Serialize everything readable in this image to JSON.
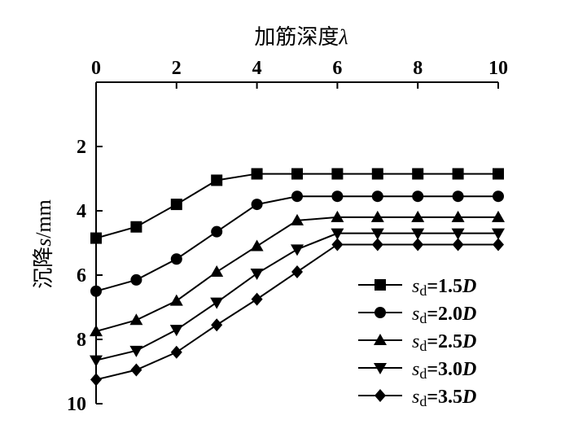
{
  "chart_data": {
    "type": "line",
    "title": "",
    "xlabel": "加筋深度λ",
    "ylabel": "沉降s/mm",
    "xlim": [
      0,
      10
    ],
    "ylim": [
      0,
      10
    ],
    "x_axis_position": "top",
    "y_inverted": true,
    "x_ticks": [
      "0",
      "2",
      "4",
      "6",
      "8",
      "10"
    ],
    "y_ticks": [
      "2",
      "4",
      "6",
      "8",
      "10"
    ],
    "legend_position": "bottom-right",
    "x": [
      0,
      1,
      2,
      3,
      4,
      5,
      6,
      7,
      8,
      9,
      10
    ],
    "series": [
      {
        "name": "sd=1.5D",
        "marker": "square",
        "values": [
          4.85,
          4.5,
          3.8,
          3.05,
          2.85,
          2.85,
          2.85,
          2.85,
          2.85,
          2.85,
          2.85
        ]
      },
      {
        "name": "sd=2.0D",
        "marker": "circle",
        "values": [
          6.5,
          6.15,
          5.5,
          4.65,
          3.8,
          3.55,
          3.55,
          3.55,
          3.55,
          3.55,
          3.55
        ]
      },
      {
        "name": "sd=2.5D",
        "marker": "triangle-up",
        "values": [
          7.75,
          7.4,
          6.8,
          5.9,
          5.1,
          4.3,
          4.2,
          4.2,
          4.2,
          4.2,
          4.2
        ]
      },
      {
        "name": "sd=3.0D",
        "marker": "triangle-down",
        "values": [
          8.65,
          8.35,
          7.7,
          6.85,
          5.95,
          5.2,
          4.7,
          4.7,
          4.7,
          4.7,
          4.7
        ]
      },
      {
        "name": "sd=3.5D",
        "marker": "diamond",
        "values": [
          9.25,
          8.95,
          8.4,
          7.55,
          6.75,
          5.9,
          5.05,
          5.05,
          5.05,
          5.05,
          5.05
        ]
      }
    ]
  },
  "legend": [
    {
      "s": "s",
      "sub": "d",
      "eq": "=1.5",
      "d": "D"
    },
    {
      "s": "s",
      "sub": "d",
      "eq": "=2.0",
      "d": "D"
    },
    {
      "s": "s",
      "sub": "d",
      "eq": "=2.5",
      "d": "D"
    },
    {
      "s": "s",
      "sub": "d",
      "eq": "=3.0",
      "d": "D"
    },
    {
      "s": "s",
      "sub": "d",
      "eq": "=3.5",
      "d": "D"
    }
  ],
  "ylabel_parts": {
    "main": "沉降",
    "var": "s",
    "unit": "/mm"
  },
  "xlabel_parts": {
    "main": "加筋深度",
    "var": "λ"
  },
  "colors": {
    "line": "#000000",
    "background": "#ffffff"
  }
}
